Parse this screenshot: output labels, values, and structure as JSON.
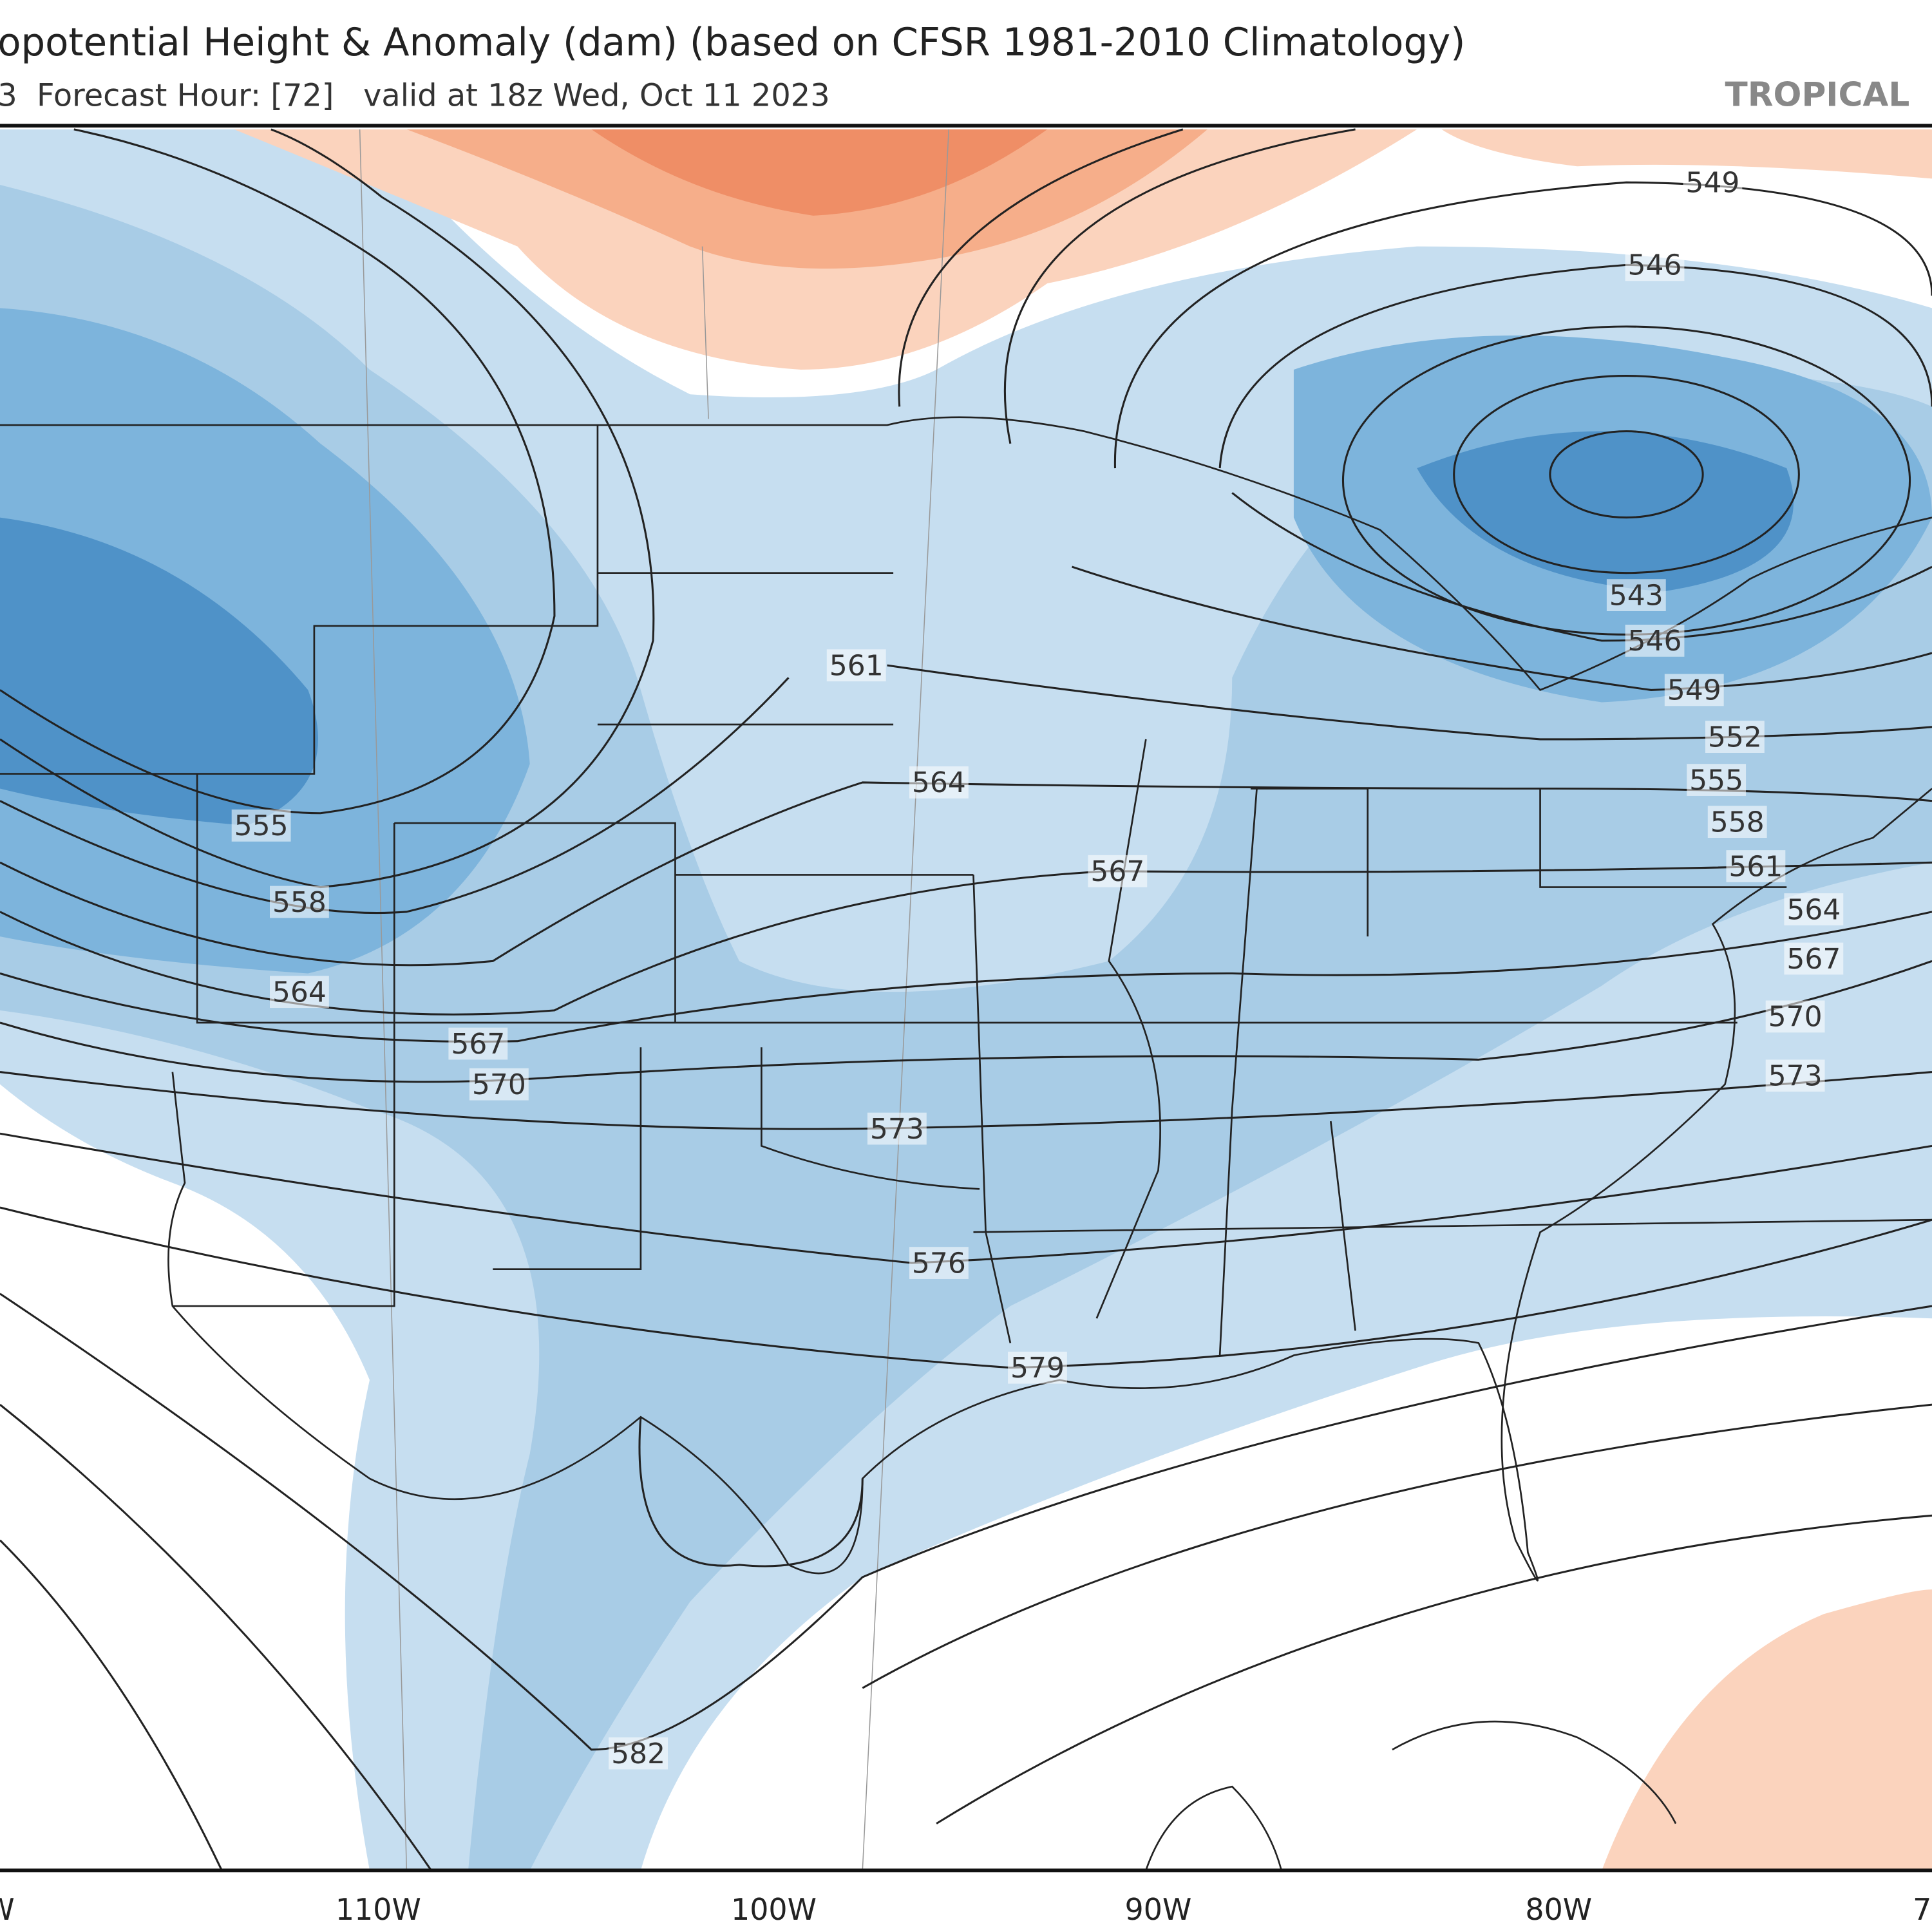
{
  "header": {
    "title": "opotential Height & Anomaly (dam) (based on CFSR 1981-2010 Climatology)",
    "subtitle": "3  Forecast Hour: [72]   valid at 18z Wed, Oct 11 2023",
    "brand": "TROPICAL"
  },
  "contour_labels": [
    549,
    546,
    543,
    546,
    549,
    552,
    555,
    558,
    561,
    564,
    567,
    570,
    573,
    561,
    564,
    567,
    573,
    576,
    579,
    582,
    555,
    558,
    564,
    567,
    570
  ],
  "longitude_labels": [
    "W",
    "110W",
    "100W",
    "90W",
    "80W",
    "7"
  ]
}
